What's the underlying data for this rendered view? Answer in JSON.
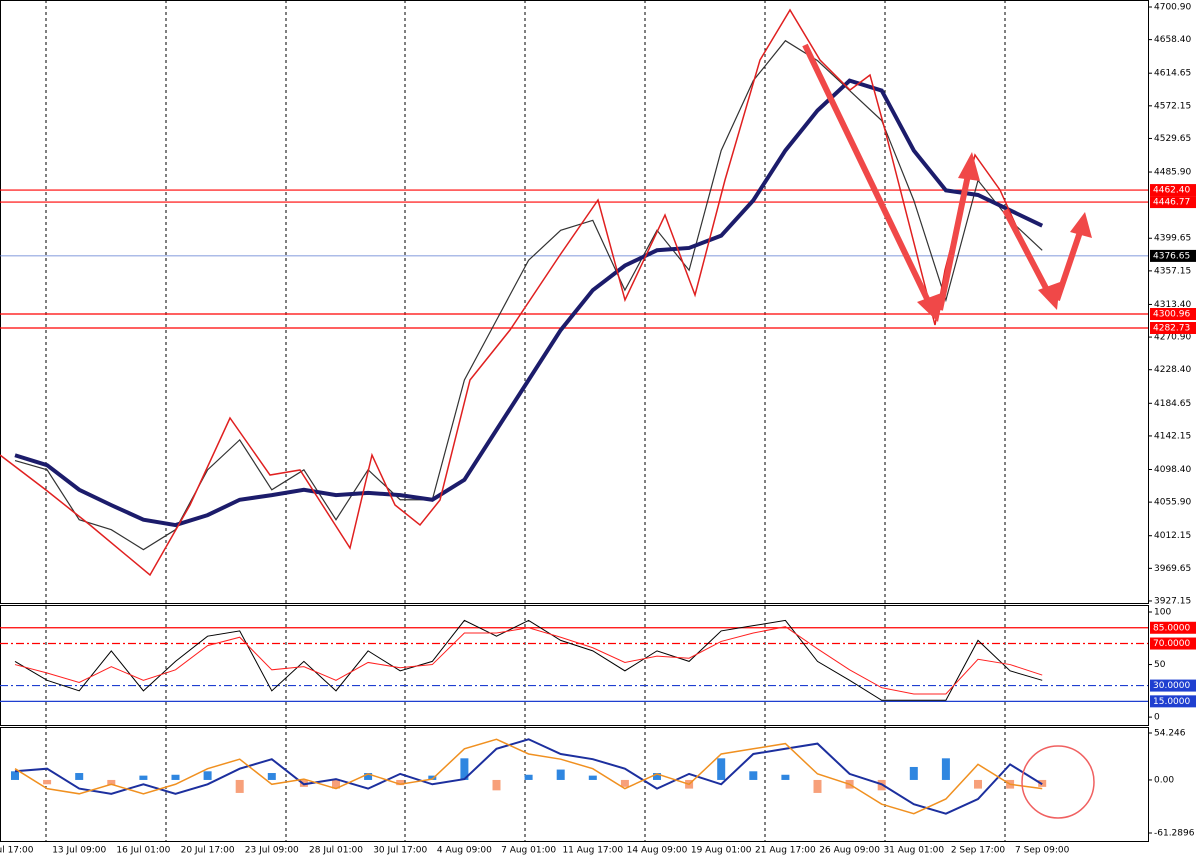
{
  "chart_data": [
    {
      "type": "line",
      "categories": [
        "ul 17:00",
        null,
        "13 Jul 09:00",
        null,
        "16 Jul 01:00",
        null,
        "20 Jul 17:00",
        null,
        "23 Jul 09:00",
        null,
        "28 Jul 01:00",
        null,
        "30 Jul 17:00",
        null,
        "4 Aug 09:00",
        null,
        "7 Aug 01:00",
        null,
        "11 Aug 17:00",
        null,
        "14 Aug 09:00",
        null,
        "19 Aug 01:00",
        null,
        "21 Aug 17:00",
        null,
        "26 Aug 09:00",
        null,
        "31 Aug 01:00",
        null,
        "2 Sep 17:00",
        null,
        "7 Sep 09:00"
      ],
      "series": [
        {
          "color": "#333333",
          "width": 1.2,
          "values": [
            4110,
            4098,
            4033,
            4020,
            3994,
            4020,
            4098,
            4137,
            4072,
            4098,
            4033,
            4098,
            4059,
            4059,
            4215,
            4293,
            4371,
            4410,
            4423,
            4332,
            4410,
            4358,
            4514,
            4605,
            4657,
            4631,
            4592,
            4553,
            4449,
            4319,
            4475,
            4423,
            4384
          ]
        },
        {
          "color": "#1c1c6b",
          "width": 4,
          "values": [
            4117,
            4104,
            4072,
            4052,
            4033,
            4026,
            4039,
            4059,
            4065,
            4072,
            4065,
            4068,
            4065,
            4059,
            4085,
            4150,
            4215,
            4280,
            4332,
            4364,
            4384,
            4387,
            4403,
            4449,
            4514,
            4566,
            4605,
            4592,
            4514,
            4462,
            4456,
            4436,
            4416
          ]
        }
      ],
      "ylim": [
        3924.5,
        4708.7
      ],
      "yticks": [
        {
          "value": 4700.9,
          "label": "4700.90"
        },
        {
          "value": 4658.4,
          "label": "4658.40"
        },
        {
          "value": 4614.65,
          "label": "4614.65"
        },
        {
          "value": 4572.15,
          "label": "4572.15"
        },
        {
          "value": 4529.65,
          "label": "4529.65"
        },
        {
          "value": 4485.9,
          "label": "4485.90"
        },
        {
          "value": 4399.65,
          "label": "4399.65"
        },
        {
          "value": 4357.15,
          "label": "4357.15"
        },
        {
          "value": 4313.4,
          "label": "4313.40"
        },
        {
          "value": 4270.9,
          "label": "4270.90"
        },
        {
          "value": 4228.4,
          "label": "4228.40"
        },
        {
          "value": 4184.65,
          "label": "4184.65"
        },
        {
          "value": 4142.15,
          "label": "4142.15"
        },
        {
          "value": 4098.4,
          "label": "4098.40"
        },
        {
          "value": 4055.9,
          "label": "4055.90"
        },
        {
          "value": 4012.15,
          "label": "4012.15"
        },
        {
          "value": 3969.65,
          "label": "3969.65"
        },
        {
          "value": 3927.15,
          "label": "3927.15"
        }
      ],
      "levels": [
        {
          "value": 4462.4,
          "label": "4462.40",
          "color": "#ff0000",
          "style": "solid"
        },
        {
          "value": 4446.77,
          "label": "4446.77",
          "color": "#ff0000",
          "style": "solid"
        },
        {
          "value": 4376.65,
          "label": "4376.65",
          "color": "#000000",
          "line_color": "#5a78d0",
          "style": "solid"
        },
        {
          "value": 4300.96,
          "label": "4300.96",
          "color": "#ff0000",
          "style": "solid"
        },
        {
          "value": 4282.73,
          "label": "4282.73",
          "color": "#ff0000",
          "style": "solid"
        }
      ]
    },
    {
      "type": "line",
      "series": [
        {
          "color": "#000000",
          "width": 1,
          "values": [
            53,
            35,
            25,
            63,
            25,
            53,
            77,
            82,
            25,
            53,
            25,
            63,
            44,
            53,
            92,
            77,
            92,
            73,
            63,
            44,
            63,
            53,
            82,
            87,
            92,
            53,
            35,
            16,
            16,
            16,
            73,
            44,
            35
          ]
        },
        {
          "color": "#ff2020",
          "width": 1,
          "values": [
            50,
            42,
            33,
            48,
            35,
            45,
            68,
            76,
            45,
            48,
            35,
            52,
            47,
            50,
            80,
            80,
            85,
            76,
            66,
            52,
            58,
            56,
            72,
            80,
            86,
            65,
            45,
            28,
            22,
            22,
            55,
            50,
            40
          ]
        }
      ],
      "ylim": [
        -7.5,
        105.7
      ],
      "yticks": [
        100,
        50,
        0
      ],
      "levels": [
        {
          "value": 85,
          "label": "85.0000",
          "color": "#ff0000",
          "style": "solid"
        },
        {
          "value": 70,
          "label": "70.0000",
          "color": "#ff0000",
          "style": "dashdot"
        },
        {
          "value": 30,
          "label": "30.0000",
          "color": "#1f3fd0",
          "style": "dashdot"
        },
        {
          "value": 15,
          "label": "15.0000",
          "color": "#1f3fd0",
          "style": "solid"
        }
      ]
    },
    {
      "type": "bar",
      "values": [
        10,
        -5,
        8,
        -6,
        5,
        6,
        10,
        -15,
        8,
        -8,
        -10,
        8,
        -6,
        5,
        25,
        -12,
        6,
        12,
        5,
        -8,
        8,
        -10,
        25,
        10,
        6,
        -15,
        -10,
        -12,
        15,
        25,
        -10,
        -10,
        -8
      ],
      "bar_colors": [
        "#2f86e0",
        "#f7a07a"
      ],
      "series": [
        {
          "color": "#1c2f9e",
          "width": 2,
          "values": [
            10,
            13,
            -10,
            -16,
            -5,
            -16,
            -5,
            13,
            24,
            -5,
            1,
            -10,
            7,
            -5,
            1,
            36,
            47,
            30,
            24,
            13,
            -10,
            7,
            -5,
            30,
            36,
            42,
            7,
            -5,
            -28,
            -39,
            -22,
            18,
            -5
          ]
        },
        {
          "color": "#f09020",
          "width": 1.5,
          "values": [
            13,
            -10,
            -16,
            -5,
            -16,
            -5,
            13,
            24,
            -5,
            1,
            -10,
            7,
            -5,
            1,
            36,
            47,
            30,
            24,
            13,
            -10,
            7,
            -5,
            30,
            36,
            42,
            7,
            -5,
            -28,
            -39,
            -22,
            18,
            -5,
            -10
          ]
        }
      ],
      "ylim": [
        -61.2896,
        54.246
      ],
      "yticks": [
        54.246,
        {
          "value": 0,
          "label": "0.00"
        },
        -61.2896
      ]
    }
  ]
}
